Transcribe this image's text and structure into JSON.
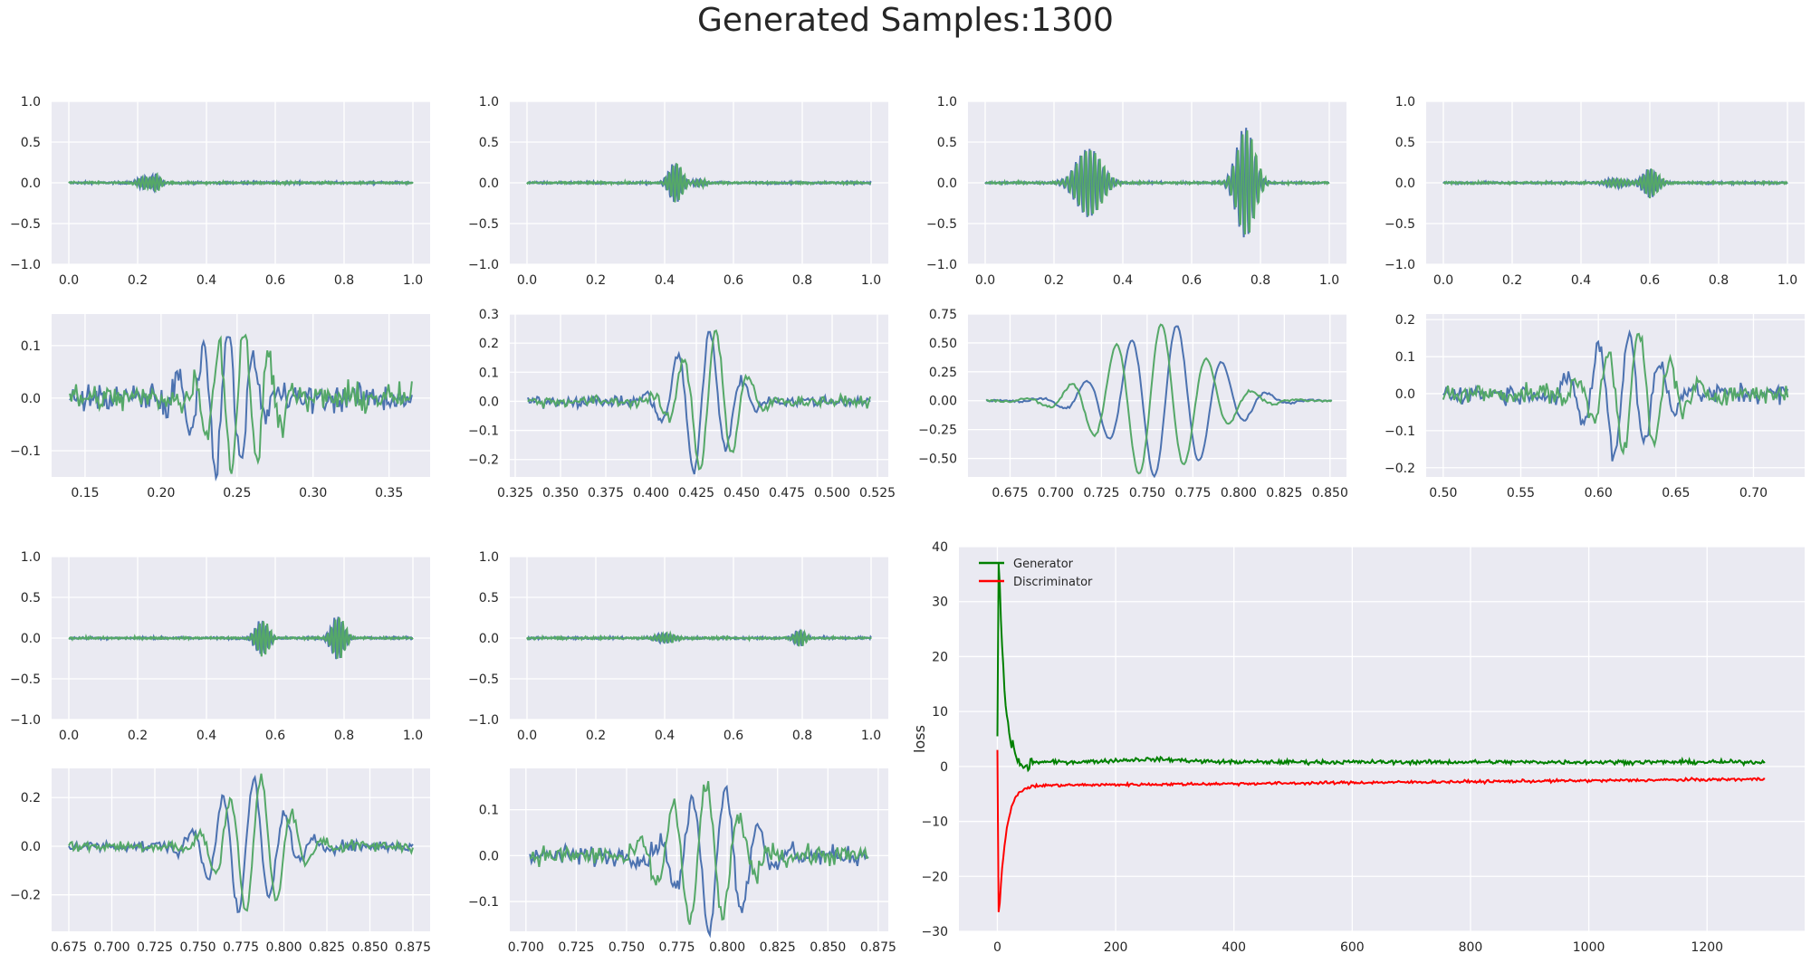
{
  "figure_title": "Generated Samples:1300",
  "colors": {
    "axes_bg": "#EAEAF2",
    "grid": "#ffffff",
    "blue": "#4C72B0",
    "green": "#55A868",
    "generator": "#008000",
    "discriminator": "#ff0000"
  },
  "chart_data": [
    {
      "type": "line",
      "subtype": "waveform",
      "xlim": [
        -0.05,
        1.05
      ],
      "ylim": [
        -1.0,
        1.0
      ],
      "xticks": [
        "0.0",
        "0.2",
        "0.4",
        "0.6",
        "0.8",
        "1.0"
      ],
      "yticks": [
        "-1.0",
        "-0.5",
        "0.0",
        "0.5",
        "1.0"
      ],
      "grid": true,
      "bursts": [
        {
          "c": 0.22,
          "w": 0.018,
          "a": 0.08,
          "f": 90
        },
        {
          "c": 0.25,
          "w": 0.012,
          "a": 0.12,
          "f": 90
        }
      ],
      "noise": 0.012
    },
    {
      "type": "line",
      "subtype": "waveform",
      "xlim": [
        -0.05,
        1.05
      ],
      "ylim": [
        -1.0,
        1.0
      ],
      "xticks": [
        "0.0",
        "0.2",
        "0.4",
        "0.6",
        "0.8",
        "1.0"
      ],
      "yticks": [
        "-1.0",
        "-0.5",
        "0.0",
        "0.5",
        "1.0"
      ],
      "grid": true,
      "bursts": [
        {
          "c": 0.43,
          "w": 0.018,
          "a": 0.25,
          "f": 90
        },
        {
          "c": 0.5,
          "w": 0.015,
          "a": 0.05,
          "f": 90
        }
      ],
      "noise": 0.012
    },
    {
      "type": "line",
      "subtype": "waveform",
      "xlim": [
        -0.05,
        1.05
      ],
      "ylim": [
        -1.0,
        1.0
      ],
      "xticks": [
        "0.0",
        "0.2",
        "0.4",
        "0.6",
        "0.8",
        "1.0"
      ],
      "yticks": [
        "-1.0",
        "-0.5",
        "0.0",
        "0.5",
        "1.0"
      ],
      "grid": true,
      "bursts": [
        {
          "c": 0.3,
          "w": 0.035,
          "a": 0.42,
          "f": 75
        },
        {
          "c": 0.755,
          "w": 0.025,
          "a": 0.68,
          "f": 75
        }
      ],
      "noise": 0.012
    },
    {
      "type": "line",
      "subtype": "waveform",
      "xlim": [
        -0.05,
        1.05
      ],
      "ylim": [
        -1.0,
        1.0
      ],
      "xticks": [
        "0.0",
        "0.2",
        "0.4",
        "0.6",
        "0.8",
        "1.0"
      ],
      "yticks": [
        "-1.0",
        "-0.5",
        "0.0",
        "0.5",
        "1.0"
      ],
      "grid": true,
      "bursts": [
        {
          "c": 0.6,
          "w": 0.02,
          "a": 0.18,
          "f": 90
        },
        {
          "c": 0.5,
          "w": 0.03,
          "a": 0.05,
          "f": 90
        }
      ],
      "noise": 0.012
    },
    {
      "type": "line",
      "subtype": "zoom",
      "xlim": [
        0.128,
        0.377
      ],
      "ylim": [
        -0.15,
        0.16
      ],
      "xticks": [
        "0.15",
        "0.20",
        "0.25",
        "0.30",
        "0.35"
      ],
      "yticks": [
        "-0.1",
        "0.0",
        "0.1"
      ],
      "grid": true,
      "xrange": [
        0.14,
        0.365
      ],
      "bursts": [
        {
          "c": 0.24,
          "w": 0.018,
          "a": 0.14,
          "f": 60
        }
      ],
      "noise": 0.025,
      "shift": 0.012
    },
    {
      "type": "line",
      "subtype": "zoom",
      "xlim": [
        0.322,
        0.531
      ],
      "ylim": [
        -0.26,
        0.3
      ],
      "xticks": [
        "0.325",
        "0.350",
        "0.375",
        "0.400",
        "0.425",
        "0.450",
        "0.475",
        "0.500",
        "0.525"
      ],
      "yticks": [
        "-0.2",
        "-0.1",
        "0.0",
        "0.1",
        "0.2",
        "0.3"
      ],
      "grid": true,
      "xrange": [
        0.332,
        0.521
      ],
      "bursts": [
        {
          "c": 0.428,
          "w": 0.014,
          "a": 0.25,
          "f": 55
        }
      ],
      "noise": 0.018,
      "shift": 0.005
    },
    {
      "type": "line",
      "subtype": "zoom",
      "xlim": [
        0.652,
        0.859
      ],
      "ylim": [
        -0.66,
        0.75
      ],
      "xticks": [
        "0.675",
        "0.700",
        "0.725",
        "0.750",
        "0.775",
        "0.800",
        "0.825",
        "0.850"
      ],
      "yticks": [
        "-0.50",
        "-0.25",
        "0.00",
        "0.25",
        "0.50",
        "0.75"
      ],
      "grid": true,
      "xrange": [
        0.662,
        0.851
      ],
      "bursts": [
        {
          "c": 0.76,
          "w": 0.026,
          "a": 0.67,
          "f": 40
        }
      ],
      "noise": 0.01,
      "shift": -0.006
    },
    {
      "type": "line",
      "subtype": "zoom",
      "xlim": [
        0.489,
        0.733
      ],
      "ylim": [
        -0.225,
        0.215
      ],
      "xticks": [
        "0.50",
        "0.55",
        "0.60",
        "0.65",
        "0.70"
      ],
      "yticks": [
        "-0.2",
        "-0.1",
        "0.0",
        "0.1",
        "0.2"
      ],
      "grid": true,
      "xrange": [
        0.5,
        0.722
      ],
      "bursts": [
        {
          "c": 0.615,
          "w": 0.02,
          "a": 0.17,
          "f": 50
        }
      ],
      "noise": 0.025,
      "shift": 0.008
    },
    {
      "type": "line",
      "subtype": "waveform",
      "xlim": [
        -0.05,
        1.05
      ],
      "ylim": [
        -1.0,
        1.0
      ],
      "xticks": [
        "0.0",
        "0.2",
        "0.4",
        "0.6",
        "0.8",
        "1.0"
      ],
      "yticks": [
        "-1.0",
        "-0.5",
        "0.0",
        "0.5",
        "1.0"
      ],
      "grid": true,
      "bursts": [
        {
          "c": 0.56,
          "w": 0.018,
          "a": 0.22,
          "f": 90
        },
        {
          "c": 0.78,
          "w": 0.018,
          "a": 0.27,
          "f": 90
        }
      ],
      "noise": 0.012
    },
    {
      "type": "line",
      "subtype": "waveform",
      "xlim": [
        -0.05,
        1.05
      ],
      "ylim": [
        -1.0,
        1.0
      ],
      "xticks": [
        "0.0",
        "0.2",
        "0.4",
        "0.6",
        "0.8",
        "1.0"
      ],
      "yticks": [
        "-1.0",
        "-0.5",
        "0.0",
        "0.5",
        "1.0"
      ],
      "grid": true,
      "bursts": [
        {
          "c": 0.4,
          "w": 0.025,
          "a": 0.06,
          "f": 90
        },
        {
          "c": 0.79,
          "w": 0.015,
          "a": 0.1,
          "f": 90
        }
      ],
      "noise": 0.012
    },
    {
      "type": "line",
      "subtype": "zoom",
      "xlim": [
        0.665,
        0.885
      ],
      "ylim": [
        -0.35,
        0.32
      ],
      "xticks": [
        "0.675",
        "0.700",
        "0.725",
        "0.750",
        "0.775",
        "0.800",
        "0.825",
        "0.850",
        "0.875"
      ],
      "yticks": [
        "-0.2",
        "0.0",
        "0.2"
      ],
      "grid": true,
      "xrange": [
        0.675,
        0.875
      ],
      "bursts": [
        {
          "c": 0.778,
          "w": 0.018,
          "a": 0.28,
          "f": 55
        }
      ],
      "noise": 0.022,
      "shift": 0.006
    },
    {
      "type": "line",
      "subtype": "zoom",
      "xlim": [
        0.692,
        0.88
      ],
      "ylim": [
        -0.165,
        0.19
      ],
      "xticks": [
        "0.700",
        "0.725",
        "0.750",
        "0.775",
        "0.800",
        "0.825",
        "0.850",
        "0.875"
      ],
      "yticks": [
        "-0.1",
        "0.0",
        "0.1"
      ],
      "grid": true,
      "xrange": [
        0.702,
        0.87
      ],
      "bursts": [
        {
          "c": 0.795,
          "w": 0.016,
          "a": 0.16,
          "f": 60
        }
      ],
      "noise": 0.02,
      "shift": -0.008
    },
    {
      "type": "line",
      "subtype": "loss",
      "ylabel": "loss",
      "xlim": [
        -65,
        1365
      ],
      "ylim": [
        -30,
        40
      ],
      "xticks": [
        "0",
        "200",
        "400",
        "600",
        "800",
        "1000",
        "1200"
      ],
      "yticks": [
        "-30",
        "-20",
        "-10",
        "0",
        "10",
        "20",
        "30",
        "40"
      ],
      "grid": true,
      "legend_position": "top-left",
      "series": [
        {
          "name": "Generator",
          "color": "#008000",
          "start": 5.5,
          "peak": 37,
          "plateau": 0.8,
          "end": 0.8
        },
        {
          "name": "Discriminator",
          "color": "#ff0000",
          "start": 3,
          "trough": -26.5,
          "plateau": -3.5,
          "end": -2.3
        }
      ],
      "epochs": 1300
    }
  ]
}
